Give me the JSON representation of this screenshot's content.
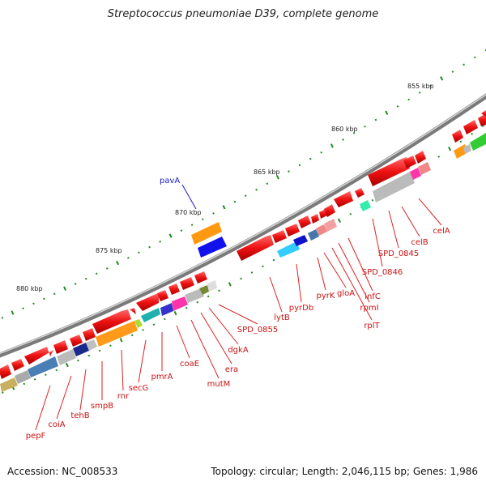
{
  "title": "Streptococcus pneumoniae D39, complete genome",
  "footer": {
    "accession": "Accession: NC_008533",
    "topology": "Topology: circular; Length: 2,046,115 bp; Genes: 1,986"
  },
  "scale_labels": [
    "855 kbp",
    "860 kbp",
    "865 kbp",
    "870 kbp",
    "875 kbp",
    "880 kbp"
  ],
  "colors": {
    "gene_forward": "#ee1111",
    "backbone": "#8a8a8a",
    "tick": "#1f8a1f",
    "label_line": "#dd2222",
    "highlight_label": "#1a1acc"
  },
  "highlight_gene": "pavA",
  "gene_labels": [
    "celA",
    "celB",
    "SPD_0845",
    "SPD_0846",
    "infC",
    "rpmI",
    "rplT",
    "gloA",
    "pyrK",
    "pyrDb",
    "lytB",
    "SPD_0855",
    "dgkA",
    "era",
    "mutM",
    "coaE",
    "pmrA",
    "secG",
    "rnr",
    "smpB",
    "tehB",
    "coiA",
    "pepF"
  ]
}
